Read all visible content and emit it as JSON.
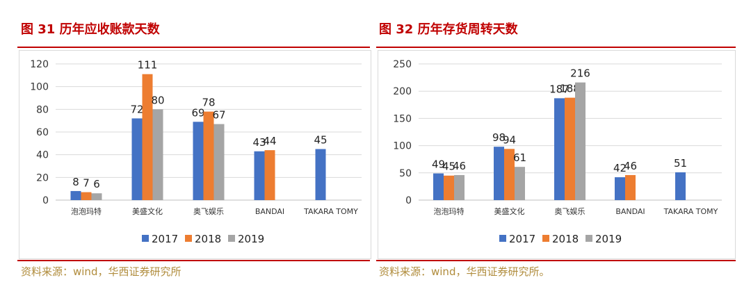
{
  "figures": [
    {
      "title": "图 31 历年应收账款天数",
      "source": "资料来源：wind，华西证券研究所"
    },
    {
      "title": "图 32 历年存货周转天数",
      "source": "资料来源：wind，华西证券研究所。"
    }
  ],
  "colors": {
    "2017": "#4472c4",
    "2018": "#ed7d31",
    "2019": "#a5a5a5",
    "accent": "#c00000",
    "source_text": "#b08c3c"
  },
  "chart_data": [
    {
      "type": "bar",
      "title": "图 31 历年应收账款天数",
      "categories": [
        "泡泡玛特",
        "美盛文化",
        "奥飞娱乐",
        "BANDAI",
        "TAKARA TOMY"
      ],
      "series": [
        {
          "name": "2017",
          "values": [
            8,
            72,
            69,
            43,
            45
          ]
        },
        {
          "name": "2018",
          "values": [
            7,
            111,
            78,
            44,
            null
          ]
        },
        {
          "name": "2019",
          "values": [
            6,
            80,
            67,
            null,
            null
          ]
        }
      ],
      "ylim": [
        0,
        120
      ],
      "yticks": [
        0,
        20,
        40,
        60,
        80,
        100,
        120
      ],
      "grid": true,
      "legend": "bottom"
    },
    {
      "type": "bar",
      "title": "图 32 历年存货周转天数",
      "categories": [
        "泡泡玛特",
        "美盛文化",
        "奥飞娱乐",
        "BANDAI",
        "TAKARA TOMY"
      ],
      "series": [
        {
          "name": "2017",
          "values": [
            49,
            98,
            187,
            42,
            51
          ]
        },
        {
          "name": "2018",
          "values": [
            45,
            94,
            188,
            46,
            null
          ]
        },
        {
          "name": "2019",
          "values": [
            46,
            61,
            216,
            null,
            null
          ]
        }
      ],
      "ylim": [
        0,
        250
      ],
      "yticks": [
        0,
        50,
        100,
        150,
        200,
        250
      ],
      "grid": true,
      "legend": "bottom"
    }
  ]
}
